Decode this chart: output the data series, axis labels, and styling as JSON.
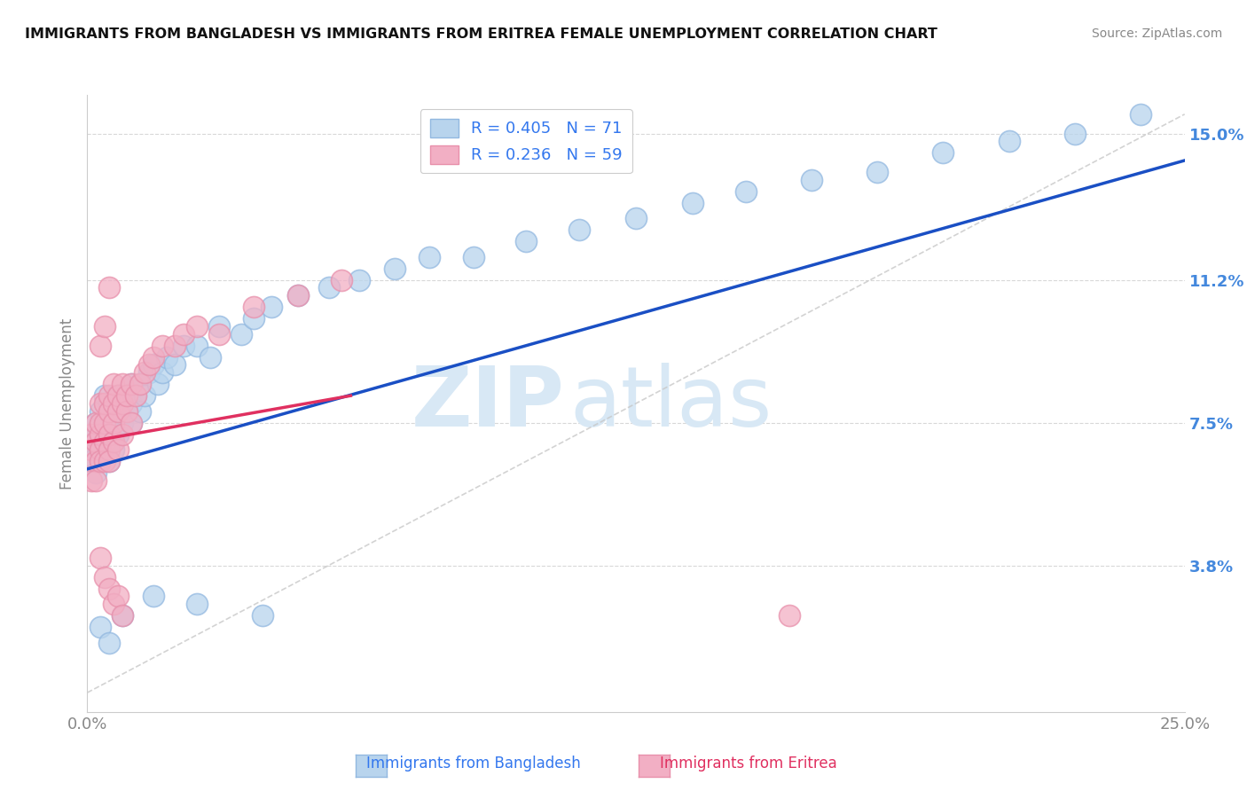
{
  "title": "IMMIGRANTS FROM BANGLADESH VS IMMIGRANTS FROM ERITREA FEMALE UNEMPLOYMENT CORRELATION CHART",
  "source": "Source: ZipAtlas.com",
  "ylabel": "Female Unemployment",
  "xlim": [
    0.0,
    0.25
  ],
  "ylim": [
    0.0,
    0.16
  ],
  "xtick_positions": [
    0.0,
    0.25
  ],
  "xtick_labels": [
    "0.0%",
    "25.0%"
  ],
  "ytick_values": [
    0.038,
    0.075,
    0.112,
    0.15
  ],
  "ytick_labels": [
    "3.8%",
    "7.5%",
    "11.2%",
    "15.0%"
  ],
  "color_blue_fill": "#b8d4ed",
  "color_blue_edge": "#92b8e0",
  "color_pink_fill": "#f2afc4",
  "color_pink_edge": "#e890ab",
  "color_blue_line": "#1a4fc4",
  "color_pink_line": "#e03060",
  "color_diag": "#c8c8c8",
  "color_grid": "#d8d8d8",
  "watermark_color": "#d8e8f5",
  "ytick_color": "#4488dd",
  "xtick_color": "#888888",
  "legend_text_color": "#3377ee",
  "bangladesh_label": "Immigrants from Bangladesh",
  "eritrea_label": "Immigrants from Eritrea",
  "bangladesh_x": [
    0.001,
    0.001,
    0.001,
    0.002,
    0.002,
    0.002,
    0.003,
    0.003,
    0.003,
    0.003,
    0.004,
    0.004,
    0.004,
    0.004,
    0.005,
    0.005,
    0.005,
    0.005,
    0.006,
    0.006,
    0.006,
    0.007,
    0.007,
    0.007,
    0.008,
    0.008,
    0.009,
    0.009,
    0.01,
    0.01,
    0.01,
    0.011,
    0.012,
    0.012,
    0.013,
    0.014,
    0.015,
    0.016,
    0.017,
    0.018,
    0.02,
    0.022,
    0.025,
    0.028,
    0.03,
    0.035,
    0.038,
    0.042,
    0.048,
    0.055,
    0.062,
    0.07,
    0.078,
    0.088,
    0.1,
    0.112,
    0.125,
    0.138,
    0.15,
    0.165,
    0.18,
    0.195,
    0.21,
    0.225,
    0.24,
    0.003,
    0.005,
    0.008,
    0.015,
    0.025,
    0.04
  ],
  "bangladesh_y": [
    0.068,
    0.072,
    0.065,
    0.07,
    0.075,
    0.062,
    0.068,
    0.072,
    0.065,
    0.078,
    0.068,
    0.075,
    0.07,
    0.082,
    0.072,
    0.065,
    0.075,
    0.08,
    0.07,
    0.078,
    0.068,
    0.075,
    0.082,
    0.072,
    0.08,
    0.075,
    0.082,
    0.078,
    0.075,
    0.08,
    0.085,
    0.082,
    0.085,
    0.078,
    0.082,
    0.088,
    0.09,
    0.085,
    0.088,
    0.092,
    0.09,
    0.095,
    0.095,
    0.092,
    0.1,
    0.098,
    0.102,
    0.105,
    0.108,
    0.11,
    0.112,
    0.115,
    0.118,
    0.118,
    0.122,
    0.125,
    0.128,
    0.132,
    0.135,
    0.138,
    0.14,
    0.145,
    0.148,
    0.15,
    0.155,
    0.022,
    0.018,
    0.025,
    0.03,
    0.028,
    0.025
  ],
  "eritrea_x": [
    0.001,
    0.001,
    0.001,
    0.002,
    0.002,
    0.002,
    0.002,
    0.003,
    0.003,
    0.003,
    0.003,
    0.003,
    0.004,
    0.004,
    0.004,
    0.004,
    0.005,
    0.005,
    0.005,
    0.005,
    0.005,
    0.006,
    0.006,
    0.006,
    0.006,
    0.007,
    0.007,
    0.007,
    0.008,
    0.008,
    0.008,
    0.009,
    0.009,
    0.01,
    0.01,
    0.011,
    0.012,
    0.013,
    0.014,
    0.015,
    0.017,
    0.02,
    0.022,
    0.025,
    0.03,
    0.038,
    0.048,
    0.058,
    0.003,
    0.004,
    0.005,
    0.003,
    0.004,
    0.005,
    0.006,
    0.007,
    0.008,
    0.16
  ],
  "eritrea_y": [
    0.068,
    0.072,
    0.06,
    0.065,
    0.07,
    0.075,
    0.06,
    0.068,
    0.072,
    0.065,
    0.075,
    0.08,
    0.07,
    0.065,
    0.075,
    0.08,
    0.068,
    0.072,
    0.078,
    0.065,
    0.082,
    0.07,
    0.075,
    0.08,
    0.085,
    0.068,
    0.078,
    0.082,
    0.072,
    0.08,
    0.085,
    0.078,
    0.082,
    0.075,
    0.085,
    0.082,
    0.085,
    0.088,
    0.09,
    0.092,
    0.095,
    0.095,
    0.098,
    0.1,
    0.098,
    0.105,
    0.108,
    0.112,
    0.095,
    0.1,
    0.11,
    0.04,
    0.035,
    0.032,
    0.028,
    0.03,
    0.025,
    0.025
  ],
  "blue_line": [
    [
      0.0,
      0.063
    ],
    [
      0.25,
      0.143
    ]
  ],
  "pink_line": [
    [
      0.0,
      0.07
    ],
    [
      0.06,
      0.082
    ]
  ],
  "diag_line": [
    [
      0.0,
      0.005
    ],
    [
      0.25,
      0.155
    ]
  ]
}
